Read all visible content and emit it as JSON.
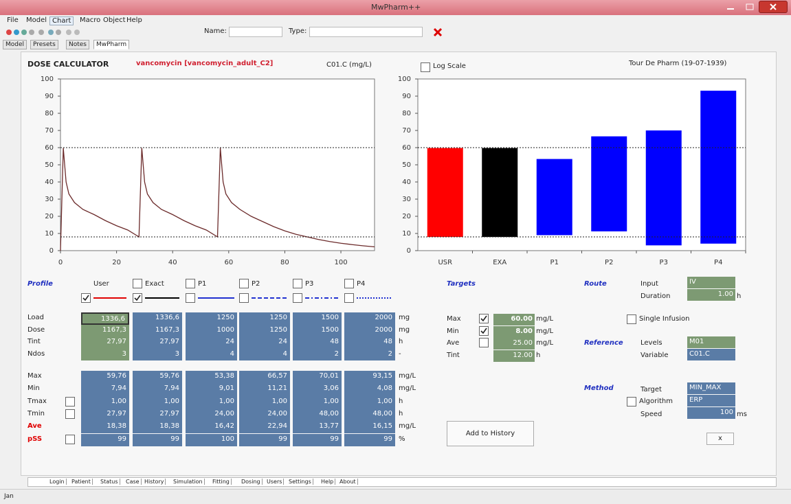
{
  "window": {
    "title": "MwPharm++"
  },
  "menu": [
    "File",
    "Model",
    "Chart",
    "Macro",
    "Object",
    "Help"
  ],
  "toolbar": {
    "name_label": "Name:",
    "type_label": "Type:"
  },
  "tabs": [
    "Model",
    "Presets",
    "Notes",
    "MwPharm"
  ],
  "header": {
    "title": "DOSE CALCULATOR",
    "drug": "vancomycin [vancomycin_adult_C2]",
    "variable": "C01.C (mg/L)",
    "log_scale": "Log Scale",
    "patient": "Tour De Pharm (19-07-1939)"
  },
  "chart_data": [
    {
      "type": "line",
      "x": [
        0,
        1,
        2,
        3,
        5,
        8,
        12,
        16,
        20,
        24,
        28,
        29,
        30,
        31,
        33,
        36,
        40,
        44,
        48,
        52,
        56,
        57,
        58,
        59,
        61,
        64,
        68,
        72,
        76,
        80,
        84,
        88,
        92,
        96,
        100,
        104,
        108,
        112
      ],
      "series": [
        {
          "color": "#6b2a2a",
          "values": [
            0,
            59.8,
            40,
            33,
            28,
            24,
            21,
            17.5,
            14.5,
            12,
            8,
            59.8,
            40,
            33,
            28,
            24,
            21,
            17.5,
            14.5,
            12,
            8,
            59.8,
            40,
            33,
            28,
            24,
            20,
            17,
            14,
            11.5,
            9.5,
            8,
            6.5,
            5.3,
            4.3,
            3.5,
            2.8,
            2.2
          ]
        }
      ],
      "xlim": [
        0,
        112
      ],
      "ylim": [
        0,
        100
      ],
      "xticks": [
        0,
        20,
        40,
        60,
        80,
        100
      ],
      "yticks": [
        0,
        10,
        20,
        30,
        40,
        50,
        60,
        70,
        80,
        90,
        100
      ],
      "reference_lines": [
        60,
        8
      ]
    },
    {
      "type": "bar",
      "categories": [
        "USR",
        "EXA",
        "P1",
        "P2",
        "P3",
        "P4"
      ],
      "values": [
        59.76,
        59.76,
        53.38,
        66.57,
        70.01,
        93.15
      ],
      "bottoms": [
        7.94,
        7.94,
        9.01,
        11.21,
        3.06,
        4.08
      ],
      "colors": [
        "#ff0000",
        "#000000",
        "#0000ff",
        "#0000ff",
        "#0000ff",
        "#0000ff"
      ],
      "ylim": [
        0,
        100
      ],
      "log_scale": false,
      "yticks": [
        0,
        10,
        20,
        30,
        40,
        50,
        60,
        70,
        80,
        90,
        100
      ],
      "reference_lines": [
        60,
        8
      ]
    }
  ],
  "profile": {
    "label": "Profile",
    "columns": [
      {
        "name": "User",
        "checked": true,
        "line_color": "#e00000",
        "dash": "",
        "input_color": "#7d9a73"
      },
      {
        "name": "Exact",
        "checked": true,
        "line_color": "#000000",
        "dash": "",
        "input_color": "#5a7ca6"
      },
      {
        "name": "P1",
        "checked": false,
        "line_color": "#2030d0",
        "dash": "",
        "input_color": "#5a7ca6"
      },
      {
        "name": "P2",
        "checked": false,
        "line_color": "#2030d0",
        "dash": "6 3",
        "input_color": "#5a7ca6"
      },
      {
        "name": "P3",
        "checked": false,
        "line_color": "#2030d0",
        "dash": "6 3 2 3",
        "input_color": "#5a7ca6"
      },
      {
        "name": "P4",
        "checked": false,
        "line_color": "#2030d0",
        "dash": "2 2",
        "input_color": "#5a7ca6"
      }
    ]
  },
  "table": {
    "inputs": [
      {
        "label": "Load",
        "cells": [
          "1336,6",
          "1336,6",
          "1250",
          "1250",
          "1500",
          "2000"
        ],
        "unit": "mg"
      },
      {
        "label": "Dose",
        "cells": [
          "1167,3",
          "1167,3",
          "1000",
          "1250",
          "1500",
          "2000"
        ],
        "unit": "mg"
      },
      {
        "label": "Tint",
        "cells": [
          "27,97",
          "27,97",
          "24",
          "24",
          "48",
          "48"
        ],
        "unit": "h"
      },
      {
        "label": "Ndos",
        "cells": [
          "3",
          "3",
          "4",
          "4",
          "2",
          "2"
        ],
        "unit": "-"
      }
    ],
    "results": [
      {
        "label": "Max",
        "cells": [
          "59,76",
          "59,76",
          "53,38",
          "66,57",
          "70,01",
          "93,15"
        ],
        "unit": "mg/L"
      },
      {
        "label": "Min",
        "cells": [
          "7,94",
          "7,94",
          "9,01",
          "11,21",
          "3,06",
          "4,08"
        ],
        "unit": "mg/L"
      },
      {
        "label": "Tmax",
        "checkbox": true,
        "cells": [
          "1,00",
          "1,00",
          "1,00",
          "1,00",
          "1,00",
          "1,00"
        ],
        "unit": "h"
      },
      {
        "label": "Tmin",
        "checkbox": true,
        "cells": [
          "27,97",
          "27,97",
          "24,00",
          "24,00",
          "48,00",
          "48,00"
        ],
        "unit": "h"
      },
      {
        "label": "Ave",
        "label_color": "#e00000",
        "cells": [
          "18,38",
          "18,38",
          "16,42",
          "22,94",
          "13,77",
          "16,15"
        ],
        "unit": "mg/L"
      },
      {
        "label": "pSS",
        "label_color": "#e00000",
        "checkbox": true,
        "cells": [
          "99",
          "99",
          "100",
          "99",
          "99",
          "99"
        ],
        "unit": "%"
      }
    ]
  },
  "targets": {
    "label": "Targets",
    "rows": [
      {
        "label": "Max",
        "checkbox": true,
        "checked": true,
        "value": "60.00",
        "unit": "mg/L"
      },
      {
        "label": "Min",
        "checkbox": true,
        "checked": true,
        "value": "8.00",
        "unit": "mg/L"
      },
      {
        "label": "Ave",
        "checkbox": true,
        "checked": false,
        "value": "25.00",
        "unit": "mg/L"
      },
      {
        "label": "Tint",
        "checkbox": false,
        "checked": false,
        "value": "12.00",
        "unit": "h"
      }
    ]
  },
  "route": {
    "label": "Route",
    "input_label": "Input",
    "input": "IV",
    "duration_label": "Duration",
    "duration": "1.00",
    "duration_unit": "h",
    "single_infusion": "Single Infusion"
  },
  "reference": {
    "label": "Reference",
    "levels_label": "Levels",
    "levels": "M01",
    "variable_label": "Variable",
    "variable": "C01.C"
  },
  "method": {
    "label": "Method",
    "target_label": "Target",
    "target": "MIN_MAX",
    "algorithm_label": "Algorithm",
    "algorithm": "ERP",
    "speed_label": "Speed",
    "speed": "100",
    "speed_unit": "ms"
  },
  "buttons": {
    "add_history": "Add to History",
    "small": "x"
  },
  "bottom_tabs": [
    "Login",
    "Patient",
    "Status",
    "Case",
    "History",
    "Simulation",
    "Fitting",
    "Dosing",
    "Users",
    "Settings",
    "Help",
    "About"
  ],
  "status": "Jan"
}
